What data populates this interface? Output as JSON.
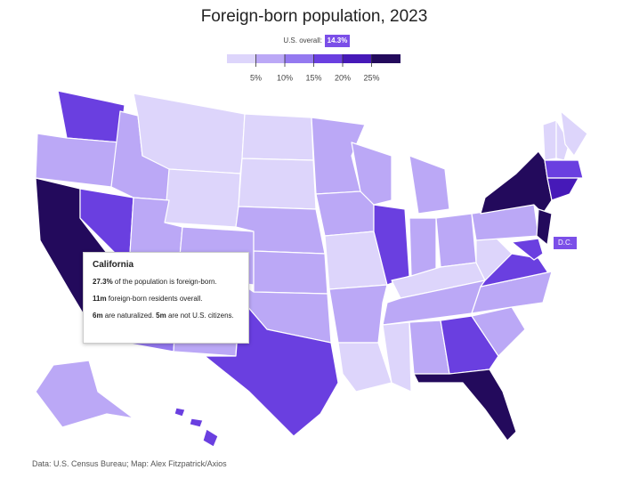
{
  "header": {
    "title": "Foreign-born population, 2023",
    "overall_label": "U.S. overall:",
    "overall_value": "14.3%"
  },
  "legend": {
    "colors": [
      "#ddd5fb",
      "#bba8f6",
      "#9479f0",
      "#6a3fe0",
      "#4619b8",
      "#230a5c"
    ],
    "ticks": [
      {
        "value": 5,
        "label": "5%"
      },
      {
        "value": 10,
        "label": "10%"
      },
      {
        "value": 15,
        "label": "15%"
      },
      {
        "value": 20,
        "label": "20%"
      },
      {
        "value": 25,
        "label": "25%"
      }
    ]
  },
  "dc_label": "D.C.",
  "tooltip": {
    "title": "California",
    "lines": [
      [
        {
          "text": "27.3%",
          "bold": true
        },
        {
          "text": " of the population is foreign-born.",
          "bold": false
        }
      ],
      [
        {
          "text": "11m",
          "bold": true
        },
        {
          "text": " foreign-born residents overall.",
          "bold": false
        }
      ],
      [
        {
          "text": "6m",
          "bold": true
        },
        {
          "text": " are naturalized. ",
          "bold": false
        },
        {
          "text": "5m",
          "bold": true
        },
        {
          "text": " are not U.S. citizens.",
          "bold": false
        }
      ]
    ]
  },
  "footer": {
    "source": "Data: U.S. Census Bureau; Map: Alex Fitzpatrick/Axios"
  }
}
